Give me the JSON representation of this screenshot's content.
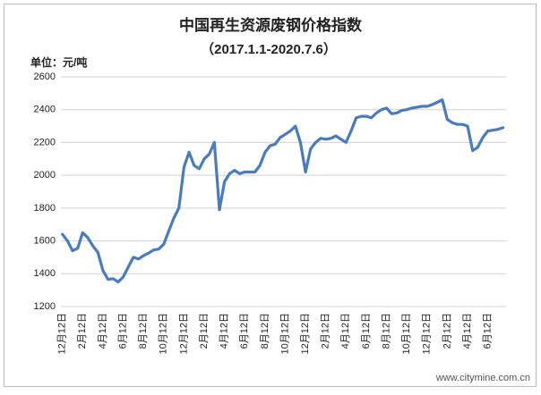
{
  "chart_data": {
    "type": "line",
    "title": "中国再生资源废钢价格指数",
    "subtitle": "（2017.1.1-2020.7.6）",
    "y_label": "单位：元/吨",
    "watermark": "www.citymine.com.cn",
    "categories": [
      "12月12日",
      null,
      null,
      null,
      "2月12日",
      null,
      null,
      null,
      "4月12日",
      null,
      null,
      null,
      "6月12日",
      null,
      null,
      null,
      "8月12日",
      null,
      null,
      null,
      "10月12日",
      null,
      null,
      null,
      "12月12日",
      null,
      null,
      null,
      "2月12日",
      null,
      null,
      null,
      "4月12日",
      null,
      null,
      null,
      "6月12日",
      null,
      null,
      null,
      "8月12日",
      null,
      null,
      null,
      "10月12日",
      null,
      null,
      null,
      "12月12日",
      null,
      null,
      null,
      "2月12日",
      null,
      null,
      null,
      "4月12日",
      null,
      null,
      null,
      "6月12日",
      null,
      null,
      null,
      "8月12日",
      null,
      null,
      null,
      "10月12日",
      null,
      null,
      null,
      "12月12日",
      null,
      null,
      null,
      "2月12日",
      null,
      null,
      null,
      "4月12日",
      null,
      null,
      null,
      "6月12日",
      null,
      null,
      null
    ],
    "series": [
      {
        "name": "中国再生资源废钢价格指数",
        "color": "#4a7bbd",
        "values": [
          1640,
          1600,
          1540,
          1555,
          1650,
          1620,
          1570,
          1530,
          1420,
          1365,
          1370,
          1350,
          1380,
          1440,
          1500,
          1490,
          1510,
          1525,
          1545,
          1550,
          1580,
          1660,
          1740,
          1800,
          2050,
          2140,
          2060,
          2040,
          2100,
          2130,
          2200,
          1790,
          1960,
          2010,
          2030,
          2010,
          2020,
          2020,
          2020,
          2060,
          2140,
          2180,
          2190,
          2230,
          2250,
          2270,
          2300,
          2200,
          2020,
          2160,
          2200,
          2225,
          2220,
          2225,
          2240,
          2220,
          2200,
          2270,
          2350,
          2360,
          2360,
          2350,
          2380,
          2400,
          2410,
          2375,
          2380,
          2395,
          2400,
          2410,
          2415,
          2420,
          2420,
          2430,
          2445,
          2460,
          2340,
          2320,
          2310,
          2310,
          2300,
          2150,
          2170,
          2230,
          2270,
          2275,
          2280,
          2290
        ]
      }
    ],
    "ylim": [
      1200,
      2600
    ],
    "yticks": [
      1200,
      1400,
      1600,
      1800,
      2000,
      2200,
      2400,
      2600
    ],
    "grid": true
  }
}
